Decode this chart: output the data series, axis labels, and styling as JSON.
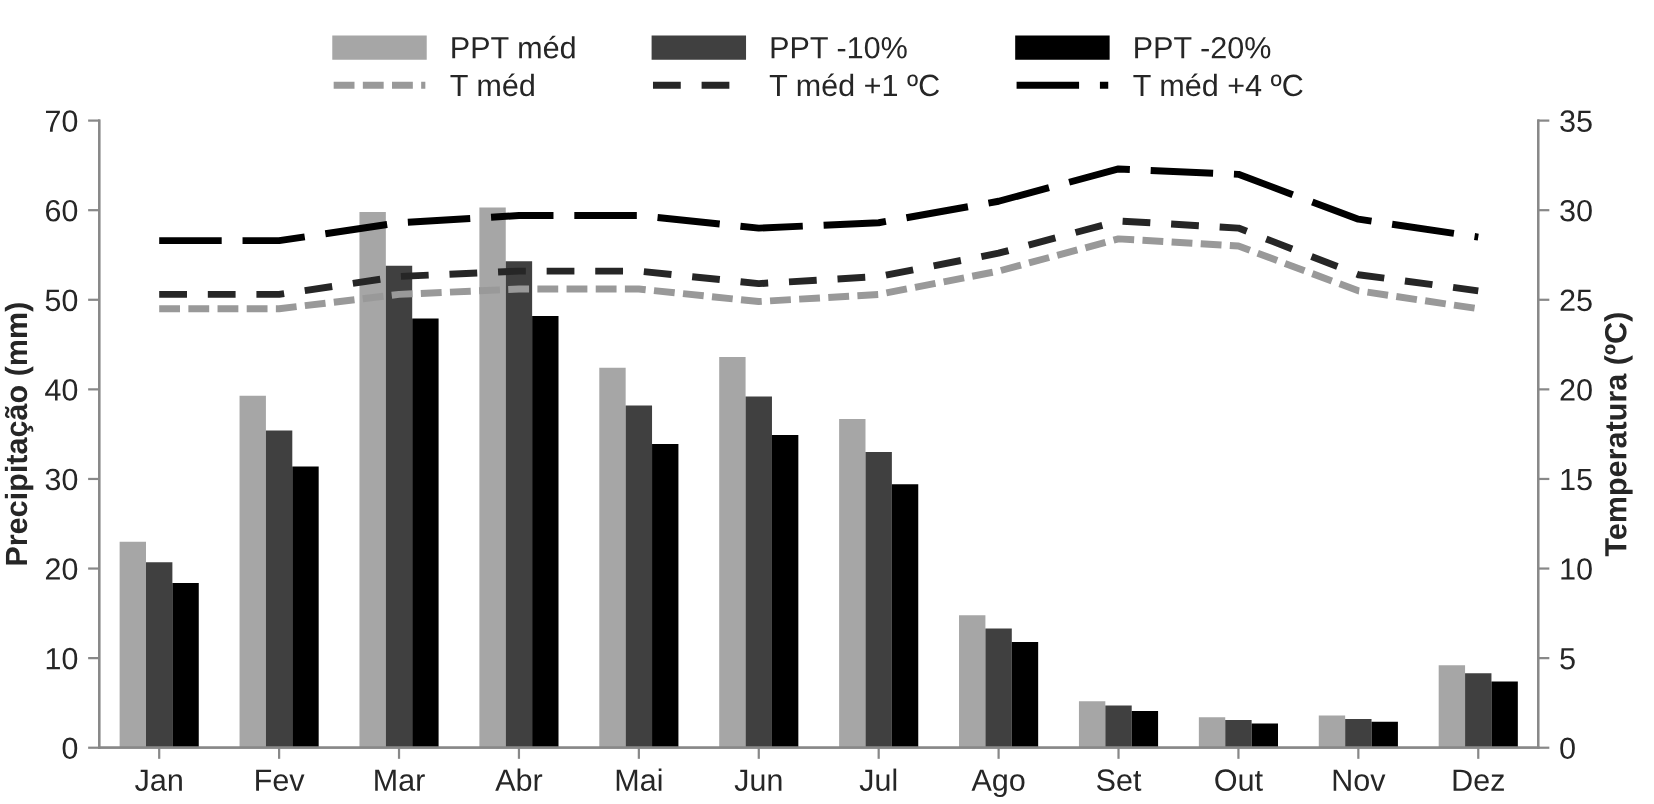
{
  "chart_data": {
    "type": "bar",
    "ylabel": "Precipitação (mm)",
    "y2label": "Temperatura (ºC)",
    "categories": [
      "Jan",
      "Fev",
      "Mar",
      "Abr",
      "Mai",
      "Jun",
      "Jul",
      "Ago",
      "Set",
      "Out",
      "Nov",
      "Dez"
    ],
    "series": [
      {
        "name": "PPT méd",
        "color": "#a6a6a6",
        "values": [
          23,
          39.3,
          59.8,
          60.3,
          42.4,
          43.6,
          36.7,
          14.8,
          5.2,
          3.4,
          3.6,
          9.2
        ]
      },
      {
        "name": "PPT -10%",
        "color": "#404040",
        "values": [
          20.7,
          35.4,
          53.8,
          54.3,
          38.2,
          39.2,
          33.0,
          13.3,
          4.7,
          3.1,
          3.2,
          8.3
        ]
      },
      {
        "name": "PPT -20%",
        "color": "#000000",
        "values": [
          18.4,
          31.4,
          47.9,
          48.2,
          33.9,
          34.9,
          29.4,
          11.8,
          4.1,
          2.7,
          2.9,
          7.4
        ]
      },
      {
        "name": "T méd",
        "type": "line",
        "axis": "y2",
        "line_style": "dotted",
        "color": "#999999",
        "values": [
          24.5,
          24.5,
          25.3,
          25.6,
          25.6,
          24.9,
          25.3,
          26.6,
          28.4,
          28.0,
          25.5,
          24.5
        ]
      },
      {
        "name": "T méd +1 ºC",
        "type": "line",
        "axis": "y2",
        "line_style": "dashed",
        "color": "#262626",
        "values": [
          25.3,
          25.3,
          26.3,
          26.6,
          26.6,
          25.9,
          26.3,
          27.6,
          29.4,
          29.0,
          26.4,
          25.5
        ]
      },
      {
        "name": "T méd +4 ºC",
        "type": "line",
        "axis": "y2",
        "line_style": "dashed",
        "color": "#000000",
        "values": [
          28.3,
          28.3,
          29.3,
          29.7,
          29.7,
          29.0,
          29.3,
          30.5,
          32.3,
          32.0,
          29.5,
          28.5
        ]
      }
    ],
    "ylim": [
      0,
      70
    ],
    "yticks": [
      0,
      10,
      20,
      30,
      40,
      50,
      60,
      70
    ],
    "y2lim": [
      0,
      35
    ],
    "y2ticks": [
      0,
      5,
      10,
      15,
      20,
      25,
      30,
      35
    ],
    "legend": "top",
    "grid": false
  }
}
